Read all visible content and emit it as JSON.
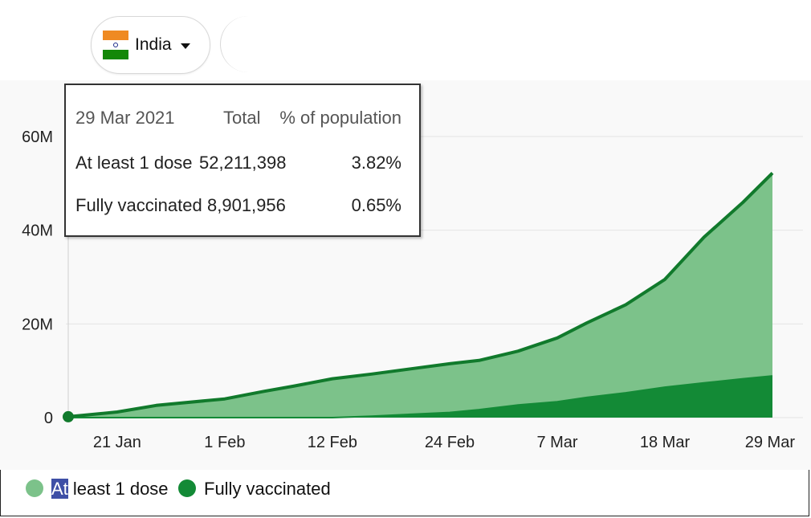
{
  "country_selector": {
    "label": "India"
  },
  "colors": {
    "first_dose_area": "#7cc28a",
    "first_dose_line": "#117a2c",
    "fully_area": "#138a36",
    "grid": "#e4e4e4",
    "flag_saffron": "#ef8a22",
    "flag_green": "#138808"
  },
  "tooltip": {
    "date": "29 Mar 2021",
    "col_total": "Total",
    "col_percent": "% of population",
    "rows": [
      {
        "label": "At least 1 dose",
        "total": "52,211,398",
        "percent": "3.82%"
      },
      {
        "label": "Fully vaccinated",
        "total": "8,901,956",
        "percent": "0.65%"
      }
    ]
  },
  "legend": {
    "first_dose_highlight": "At",
    "first_dose_rest": " least 1 dose",
    "fully": "Fully vaccinated"
  },
  "chart_data": {
    "type": "area",
    "title": "",
    "xlabel": "",
    "ylabel": "",
    "x_ticks": [
      "21 Jan",
      "1 Feb",
      "12 Feb",
      "24 Feb",
      "7 Mar",
      "18 Mar",
      "29 Mar"
    ],
    "y_ticks": [
      "0",
      "20M",
      "40M",
      "60M"
    ],
    "ylim": [
      0,
      60000000
    ],
    "legend_position": "bottom-left",
    "grid": true,
    "x": [
      "16 Jan",
      "21 Jan",
      "25 Jan",
      "1 Feb",
      "5 Feb",
      "8 Feb",
      "12 Feb",
      "16 Feb",
      "20 Feb",
      "24 Feb",
      "27 Feb",
      "3 Mar",
      "7 Mar",
      "10 Mar",
      "14 Mar",
      "18 Mar",
      "22 Mar",
      "26 Mar",
      "29 Mar"
    ],
    "series": [
      {
        "name": "At least 1 dose",
        "values": [
          190000,
          1200000,
          2600000,
          4000000,
          5600000,
          6700000,
          8300000,
          9300000,
          10400000,
          11500000,
          12200000,
          14200000,
          17000000,
          20200000,
          24100000,
          29500000,
          38500000,
          46000000,
          52211398
        ]
      },
      {
        "name": "Fully vaccinated",
        "values": [
          0,
          0,
          0,
          0,
          0,
          0,
          0,
          300000,
          700000,
          1100000,
          1700000,
          2700000,
          3400000,
          4300000,
          5300000,
          6500000,
          7400000,
          8300000,
          8901956
        ]
      }
    ]
  }
}
